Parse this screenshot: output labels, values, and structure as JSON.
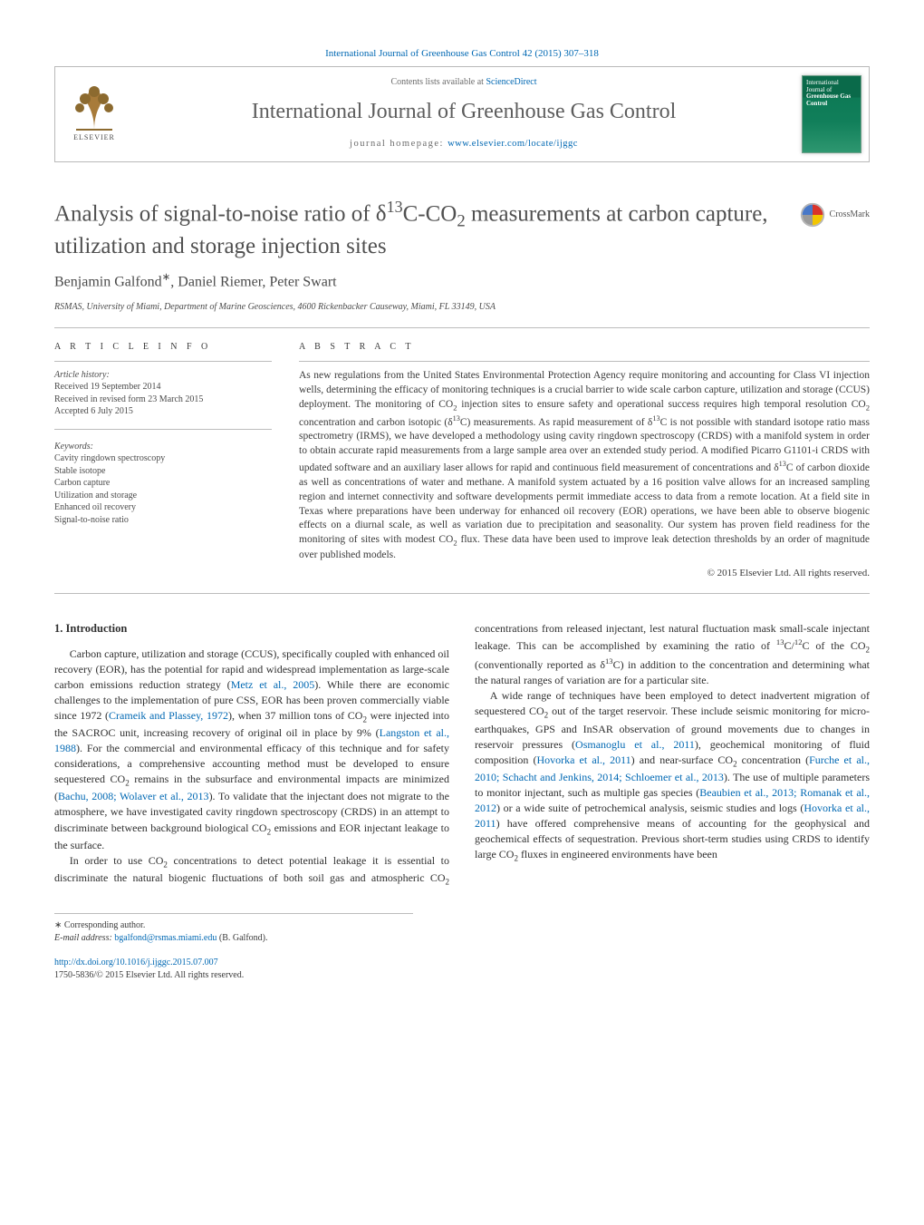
{
  "citation": "International Journal of Greenhouse Gas Control 42 (2015) 307–318",
  "contents_line_prefix": "Contents lists available at ",
  "contents_link": "ScienceDirect",
  "journal_name": "International Journal of Greenhouse Gas Control",
  "homepage_prefix": "journal homepage: ",
  "homepage_link": "www.elsevier.com/locate/ijggc",
  "publisher_logo_text": "ELSEVIER",
  "cover_thumb_line1": "International Journal of",
  "cover_thumb_line2": "Greenhouse Gas Control",
  "title_html": "Analysis of signal-to-noise ratio of δ<sup>13</sup>C-CO<sub>2</sub> measurements at carbon capture, utilization and storage injection sites",
  "crossmark_label": "CrossMark",
  "authors_html": "Benjamin Galfond<sup>∗</sup>, Daniel Riemer, Peter Swart",
  "affiliation": "RSMAS, University of Miami, Department of Marine Geosciences, 4600 Rickenbacker Causeway, Miami, FL 33149, USA",
  "section_article_info": "a r t i c l e   i n f o",
  "history_label": "Article history:",
  "history_received": "Received 19 September 2014",
  "history_revised": "Received in revised form 23 March 2015",
  "history_accepted": "Accepted 6 July 2015",
  "keywords_label": "Keywords:",
  "keywords": [
    "Cavity ringdown spectroscopy",
    "Stable isotope",
    "Carbon capture",
    "Utilization and storage",
    "Enhanced oil recovery",
    "Signal-to-noise ratio"
  ],
  "section_abstract": "a b s t r a c t",
  "abstract_html": "As new regulations from the United States Environmental Protection Agency require monitoring and accounting for Class VI injection wells, determining the efficacy of monitoring techniques is a crucial barrier to wide scale carbon capture, utilization and storage (CCUS) deployment. The monitoring of CO<sub>2</sub> injection sites to ensure safety and operational success requires high temporal resolution CO<sub>2</sub> concentration and carbon isotopic (δ<sup>13</sup>C) measurements. As rapid measurement of δ<sup>13</sup>C is not possible with standard isotope ratio mass spectrometry (IRMS), we have developed a methodology using cavity ringdown spectroscopy (CRDS) with a manifold system in order to obtain accurate rapid measurements from a large sample area over an extended study period. A modified Picarro G1101-i CRDS with updated software and an auxiliary laser allows for rapid and continuous field measurement of concentrations and δ<sup>13</sup>C of carbon dioxide as well as concentrations of water and methane. A manifold system actuated by a 16 position valve allows for an increased sampling region and internet connectivity and software developments permit immediate access to data from a remote location. At a field site in Texas where preparations have been underway for enhanced oil recovery (EOR) operations, we have been able to observe biogenic effects on a diurnal scale, as well as variation due to precipitation and seasonality. Our system has proven field readiness for the monitoring of sites with modest CO<sub>2</sub> flux. These data have been used to improve leak detection thresholds by an order of magnitude over published models.",
  "copyright": "© 2015 Elsevier Ltd. All rights reserved.",
  "intro_heading": "1.  Introduction",
  "intro_p1_html": "Carbon capture, utilization and storage (CCUS), specifically coupled with enhanced oil recovery (EOR), has the potential for rapid and widespread implementation as large-scale carbon emissions reduction strategy (<a class=\"ref-link\" data-name=\"ref-link\" data-interactable=\"true\">Metz et al., 2005</a>). While there are economic challenges to the implementation of pure CSS, EOR has been proven commercially viable since 1972 (<a class=\"ref-link\" data-name=\"ref-link\" data-interactable=\"true\">Crameik and Plassey, 1972</a>), when 37 million tons of CO<sub>2</sub> were injected into the SACROC unit, increasing recovery of original oil in place by 9% (<a class=\"ref-link\" data-name=\"ref-link\" data-interactable=\"true\">Langston et al., 1988</a>). For the commercial and environmental efficacy of this technique and for safety considerations, a comprehensive accounting method must be developed to ensure sequestered CO<sub>2</sub> remains in the subsurface and environmental impacts are minimized (<a class=\"ref-link\" data-name=\"ref-link\" data-interactable=\"true\">Bachu, 2008; Wolaver et al., 2013</a>). To validate that the injectant does not migrate to the atmosphere, we have investigated cavity ringdown spectroscopy (CRDS) in an attempt to discriminate between background biological CO<sub>2</sub> emissions and EOR injectant leakage to the surface.",
  "intro_p2_html": "In order to use CO<sub>2</sub> concentrations to detect potential leakage it is essential to discriminate the natural biogenic fluctuations of both soil gas and atmospheric CO<sub>2</sub> concentrations from released injectant, lest natural fluctuation mask small-scale injectant leakage. This can be accomplished by examining the ratio of <sup>13</sup>C/<sup>12</sup>C of the CO<sub>2</sub> (conventionally reported as δ<sup>13</sup>C) in addition to the concentration and determining what the natural ranges of variation are for a particular site.",
  "intro_p3_html": "A wide range of techniques have been employed to detect inadvertent migration of sequestered CO<sub>2</sub> out of the target reservoir. These include seismic monitoring for micro-earthquakes, GPS and InSAR observation of ground movements due to changes in reservoir pressures (<a class=\"ref-link\" data-name=\"ref-link\" data-interactable=\"true\">Osmanoglu et al., 2011</a>), geochemical monitoring of fluid composition (<a class=\"ref-link\" data-name=\"ref-link\" data-interactable=\"true\">Hovorka et al., 2011</a>) and near-surface CO<sub>2</sub> concentration (<a class=\"ref-link\" data-name=\"ref-link\" data-interactable=\"true\">Furche et al., 2010; Schacht and Jenkins, 2014; Schloemer et al., 2013</a>). The use of multiple parameters to monitor injectant, such as multiple gas species (<a class=\"ref-link\" data-name=\"ref-link\" data-interactable=\"true\">Beaubien et al., 2013; Romanak et al., 2012</a>) or a wide suite of petrochemical analysis, seismic studies and logs (<a class=\"ref-link\" data-name=\"ref-link\" data-interactable=\"true\">Hovorka et al., 2011</a>) have offered comprehensive means of accounting for the geophysical and geochemical effects of sequestration. Previous short-term studies using CRDS to identify large CO<sub>2</sub> fluxes in engineered environments have been",
  "footnote_corresponding": "∗ Corresponding author.",
  "footnote_email_label": "E-mail address: ",
  "footnote_email": "bgalfond@rsmas.miami.edu",
  "footnote_email_who": " (B. Galfond).",
  "doi_link": "http://dx.doi.org/10.1016/j.ijggc.2015.07.007",
  "issn_line": "1750-5836/© 2015 Elsevier Ltd. All rights reserved.",
  "colors": {
    "link": "#0068b3",
    "text": "#3a3a3a",
    "rule": "#bcbcbc",
    "cover_dark": "#0a6a4a",
    "cover_light": "#2e9770"
  }
}
